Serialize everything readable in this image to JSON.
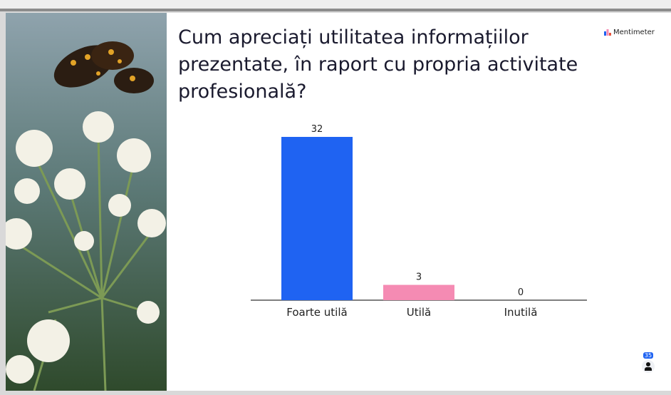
{
  "brand": "Mentimeter",
  "participants": "35",
  "chart_data": {
    "type": "bar",
    "title": "Cum apreciați utilitatea informațiilor prezentate, în raport cu propria activitate profesională?",
    "categories": [
      "Foarte utilă",
      "Utilă",
      "Inutilă"
    ],
    "values": [
      32,
      3,
      0
    ],
    "colors": [
      "#1f63f2",
      "#f58bb3",
      "#9aa0b0"
    ]
  }
}
